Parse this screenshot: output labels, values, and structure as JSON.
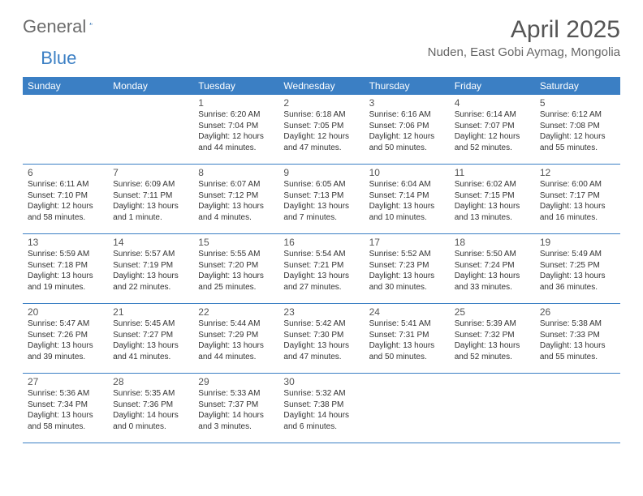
{
  "brand": {
    "part1": "General",
    "part2": "Blue"
  },
  "title": "April 2025",
  "location": "Nuden, East Gobi Aymag, Mongolia",
  "colors": {
    "header_bg": "#3b7fc4",
    "header_text": "#ffffff",
    "border": "#3b7fc4",
    "body_text": "#333333",
    "muted_text": "#555555",
    "background": "#ffffff"
  },
  "typography": {
    "title_fontsize": 30,
    "location_fontsize": 15,
    "dayhead_fontsize": 12,
    "daynum_fontsize": 12,
    "cell_fontsize": 10
  },
  "day_names": [
    "Sunday",
    "Monday",
    "Tuesday",
    "Wednesday",
    "Thursday",
    "Friday",
    "Saturday"
  ],
  "weeks": [
    [
      null,
      null,
      {
        "n": "1",
        "sr": "Sunrise: 6:20 AM",
        "ss": "Sunset: 7:04 PM",
        "dl": "Daylight: 12 hours and 44 minutes."
      },
      {
        "n": "2",
        "sr": "Sunrise: 6:18 AM",
        "ss": "Sunset: 7:05 PM",
        "dl": "Daylight: 12 hours and 47 minutes."
      },
      {
        "n": "3",
        "sr": "Sunrise: 6:16 AM",
        "ss": "Sunset: 7:06 PM",
        "dl": "Daylight: 12 hours and 50 minutes."
      },
      {
        "n": "4",
        "sr": "Sunrise: 6:14 AM",
        "ss": "Sunset: 7:07 PM",
        "dl": "Daylight: 12 hours and 52 minutes."
      },
      {
        "n": "5",
        "sr": "Sunrise: 6:12 AM",
        "ss": "Sunset: 7:08 PM",
        "dl": "Daylight: 12 hours and 55 minutes."
      }
    ],
    [
      {
        "n": "6",
        "sr": "Sunrise: 6:11 AM",
        "ss": "Sunset: 7:10 PM",
        "dl": "Daylight: 12 hours and 58 minutes."
      },
      {
        "n": "7",
        "sr": "Sunrise: 6:09 AM",
        "ss": "Sunset: 7:11 PM",
        "dl": "Daylight: 13 hours and 1 minute."
      },
      {
        "n": "8",
        "sr": "Sunrise: 6:07 AM",
        "ss": "Sunset: 7:12 PM",
        "dl": "Daylight: 13 hours and 4 minutes."
      },
      {
        "n": "9",
        "sr": "Sunrise: 6:05 AM",
        "ss": "Sunset: 7:13 PM",
        "dl": "Daylight: 13 hours and 7 minutes."
      },
      {
        "n": "10",
        "sr": "Sunrise: 6:04 AM",
        "ss": "Sunset: 7:14 PM",
        "dl": "Daylight: 13 hours and 10 minutes."
      },
      {
        "n": "11",
        "sr": "Sunrise: 6:02 AM",
        "ss": "Sunset: 7:15 PM",
        "dl": "Daylight: 13 hours and 13 minutes."
      },
      {
        "n": "12",
        "sr": "Sunrise: 6:00 AM",
        "ss": "Sunset: 7:17 PM",
        "dl": "Daylight: 13 hours and 16 minutes."
      }
    ],
    [
      {
        "n": "13",
        "sr": "Sunrise: 5:59 AM",
        "ss": "Sunset: 7:18 PM",
        "dl": "Daylight: 13 hours and 19 minutes."
      },
      {
        "n": "14",
        "sr": "Sunrise: 5:57 AM",
        "ss": "Sunset: 7:19 PM",
        "dl": "Daylight: 13 hours and 22 minutes."
      },
      {
        "n": "15",
        "sr": "Sunrise: 5:55 AM",
        "ss": "Sunset: 7:20 PM",
        "dl": "Daylight: 13 hours and 25 minutes."
      },
      {
        "n": "16",
        "sr": "Sunrise: 5:54 AM",
        "ss": "Sunset: 7:21 PM",
        "dl": "Daylight: 13 hours and 27 minutes."
      },
      {
        "n": "17",
        "sr": "Sunrise: 5:52 AM",
        "ss": "Sunset: 7:23 PM",
        "dl": "Daylight: 13 hours and 30 minutes."
      },
      {
        "n": "18",
        "sr": "Sunrise: 5:50 AM",
        "ss": "Sunset: 7:24 PM",
        "dl": "Daylight: 13 hours and 33 minutes."
      },
      {
        "n": "19",
        "sr": "Sunrise: 5:49 AM",
        "ss": "Sunset: 7:25 PM",
        "dl": "Daylight: 13 hours and 36 minutes."
      }
    ],
    [
      {
        "n": "20",
        "sr": "Sunrise: 5:47 AM",
        "ss": "Sunset: 7:26 PM",
        "dl": "Daylight: 13 hours and 39 minutes."
      },
      {
        "n": "21",
        "sr": "Sunrise: 5:45 AM",
        "ss": "Sunset: 7:27 PM",
        "dl": "Daylight: 13 hours and 41 minutes."
      },
      {
        "n": "22",
        "sr": "Sunrise: 5:44 AM",
        "ss": "Sunset: 7:29 PM",
        "dl": "Daylight: 13 hours and 44 minutes."
      },
      {
        "n": "23",
        "sr": "Sunrise: 5:42 AM",
        "ss": "Sunset: 7:30 PM",
        "dl": "Daylight: 13 hours and 47 minutes."
      },
      {
        "n": "24",
        "sr": "Sunrise: 5:41 AM",
        "ss": "Sunset: 7:31 PM",
        "dl": "Daylight: 13 hours and 50 minutes."
      },
      {
        "n": "25",
        "sr": "Sunrise: 5:39 AM",
        "ss": "Sunset: 7:32 PM",
        "dl": "Daylight: 13 hours and 52 minutes."
      },
      {
        "n": "26",
        "sr": "Sunrise: 5:38 AM",
        "ss": "Sunset: 7:33 PM",
        "dl": "Daylight: 13 hours and 55 minutes."
      }
    ],
    [
      {
        "n": "27",
        "sr": "Sunrise: 5:36 AM",
        "ss": "Sunset: 7:34 PM",
        "dl": "Daylight: 13 hours and 58 minutes."
      },
      {
        "n": "28",
        "sr": "Sunrise: 5:35 AM",
        "ss": "Sunset: 7:36 PM",
        "dl": "Daylight: 14 hours and 0 minutes."
      },
      {
        "n": "29",
        "sr": "Sunrise: 5:33 AM",
        "ss": "Sunset: 7:37 PM",
        "dl": "Daylight: 14 hours and 3 minutes."
      },
      {
        "n": "30",
        "sr": "Sunrise: 5:32 AM",
        "ss": "Sunset: 7:38 PM",
        "dl": "Daylight: 14 hours and 6 minutes."
      },
      null,
      null,
      null
    ]
  ]
}
